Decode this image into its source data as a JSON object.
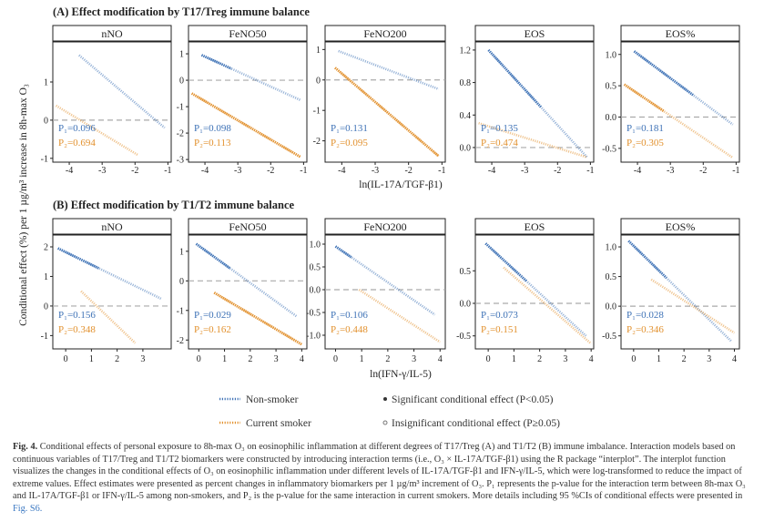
{
  "figure": {
    "ylabel": "Conditional  effect (%) per 1 µg/m³ increase in 8h-max O₃",
    "panel_a_title": "(A) Effect modification by T17/Treg immune balance",
    "panel_b_title": "(B) Effect modification by T1/T2 immune balance",
    "panel_a_xlabel": "ln(IL-17A/TGF-β1)",
    "panel_b_xlabel": "ln(IFN-γ/IL-5)",
    "legend": {
      "non_smoker": "Non-smoker",
      "current_smoker": "Current smoker",
      "significant": "Significant conditional  effect (P<0.05)",
      "insignificant": "Insignificant conditional  effect (P≥0.05)"
    },
    "colors": {
      "non_smoker": "#3e72b6",
      "current_smoker": "#e2912e",
      "refline": "#aaaaaa"
    }
  },
  "caption": {
    "label": "Fig. 4.",
    "text": "Conditional effects of personal exposure to 8h-max O₃ on eosinophilic inflammation at different degrees of T17/Treg (A) and T1/T2 (B) immune imbalance. Interaction models based on continuous variables of T17/Treg and T1/T2 biomarkers were constructed by introducing interaction terms (i.e., O₃ × IL-17A/TGF-β1) using the R package “interplot”. The interplot function visualizes the changes in the conditional effects of O₃ on eosinophilic inflammation under different levels of IL-17A/TGF-β1 and IFN-γ/IL-5, which were log-transformed to reduce the impact of extreme values. Effect estimates were presented as percent changes in inflammatory biomarkers per 1 µg/m³ increment of O₃. P₁ represents the p-value for the interaction term between 8h-max O₃ and IL-17A/TGF-β1 or IFN-γ/IL-5 among non-smokers, and P₂ is the p-value for the same interaction in current smokers. More details including 95 %CIs of conditional effects were presented in",
    "link": "Fig. S6."
  },
  "chart_data": [
    {
      "type": "line",
      "panel": "A",
      "title": "nNO",
      "xlim": [
        -4.5,
        -0.9
      ],
      "ylim": [
        -1.1,
        2.05
      ],
      "xticks": [
        -4,
        -3,
        -2,
        -1
      ],
      "yticks": [
        -1,
        0,
        1
      ],
      "ytick_labels": [
        "-1",
        "0",
        "1"
      ],
      "series": [
        {
          "name": "Non-smoker",
          "x": [
            -3.7,
            -1.1
          ],
          "y": [
            1.7,
            -0.2
          ],
          "p": "P₁=0.096",
          "significant_x": []
        },
        {
          "name": "Current smoker",
          "x": [
            -4.4,
            -1.9
          ],
          "y": [
            0.38,
            -0.92
          ],
          "p": "P₂=0.694",
          "significant_x": []
        }
      ]
    },
    {
      "type": "line",
      "panel": "A",
      "title": "FeNO50",
      "xlim": [
        -4.5,
        -0.9
      ],
      "ylim": [
        -3.1,
        1.45
      ],
      "xticks": [
        -4,
        -3,
        -2,
        -1
      ],
      "yticks": [
        -3,
        -2,
        -1,
        0,
        1
      ],
      "ytick_labels": [
        "-3",
        "-2",
        "-1",
        "0",
        "1"
      ],
      "series": [
        {
          "name": "Non-smoker",
          "x": [
            -4.1,
            -1.1
          ],
          "y": [
            0.95,
            -0.75
          ],
          "p": "P₁=0.098",
          "significant_x": [
            -4.1,
            -3.2
          ]
        },
        {
          "name": "Current smoker",
          "x": [
            -4.4,
            -1.1
          ],
          "y": [
            -0.5,
            -2.9
          ],
          "p": "P₂=0.113",
          "significant_x": [
            -4.4,
            -1.1
          ]
        }
      ]
    },
    {
      "type": "line",
      "panel": "A",
      "title": "FeNO200",
      "xlim": [
        -4.5,
        -0.9
      ],
      "ylim": [
        -2.7,
        1.25
      ],
      "xticks": [
        -4,
        -3,
        -2,
        -1
      ],
      "yticks": [
        -2,
        -1,
        0,
        1
      ],
      "ytick_labels": [
        "-2",
        "-1",
        "0",
        "1"
      ],
      "series": [
        {
          "name": "Non-smoker",
          "x": [
            -4.1,
            -1.1
          ],
          "y": [
            0.95,
            -0.3
          ],
          "p": "P₁=0.131",
          "significant_x": []
        },
        {
          "name": "Current smoker",
          "x": [
            -4.2,
            -1.1
          ],
          "y": [
            0.4,
            -2.5
          ],
          "p": "P₂=0.095",
          "significant_x": [
            -4.2,
            -1.1
          ]
        }
      ]
    },
    {
      "type": "line",
      "panel": "A",
      "title": "EOS",
      "xlim": [
        -4.5,
        -0.9
      ],
      "ylim": [
        -0.18,
        1.3
      ],
      "xticks": [
        -4,
        -3,
        -2,
        -1
      ],
      "yticks": [
        0.0,
        0.4,
        0.8,
        1.2
      ],
      "ytick_labels": [
        "0.0",
        "0.4",
        "0.8",
        "1.2"
      ],
      "series": [
        {
          "name": "Non-smoker",
          "x": [
            -4.1,
            -1.1
          ],
          "y": [
            1.2,
            -0.12
          ],
          "p": "P₁=0.135",
          "significant_x": [
            -4.1,
            -2.5
          ]
        },
        {
          "name": "Current smoker",
          "x": [
            -4.4,
            -1.1
          ],
          "y": [
            0.3,
            -0.12
          ],
          "p": "P₂=0.474",
          "significant_x": []
        }
      ]
    },
    {
      "type": "line",
      "panel": "A",
      "title": "EOS%",
      "xlim": [
        -4.5,
        -0.9
      ],
      "ylim": [
        -0.72,
        1.2
      ],
      "xticks": [
        -4,
        -3,
        -2,
        -1
      ],
      "yticks": [
        -0.5,
        0.0,
        0.5,
        1.0
      ],
      "ytick_labels": [
        "-0.5",
        "0.0",
        "0.5",
        "1.0"
      ],
      "series": [
        {
          "name": "Non-smoker",
          "x": [
            -4.1,
            -1.1
          ],
          "y": [
            1.05,
            -0.12
          ],
          "p": "P₁=0.181",
          "significant_x": [
            -4.1,
            -2.3
          ]
        },
        {
          "name": "Current smoker",
          "x": [
            -4.4,
            -1.1
          ],
          "y": [
            0.52,
            -0.65
          ],
          "p": "P₂=0.305",
          "significant_x": [
            -4.4,
            -3.2
          ]
        }
      ]
    },
    {
      "type": "line",
      "panel": "B",
      "title": "nNO",
      "xlim": [
        -0.5,
        4.1
      ],
      "ylim": [
        -1.45,
        2.4
      ],
      "xticks": [
        0,
        1,
        2,
        3
      ],
      "yticks": [
        -1,
        0,
        1,
        2
      ],
      "ytick_labels": [
        "-1",
        "0",
        "1",
        "2"
      ],
      "series": [
        {
          "name": "Non-smoker",
          "x": [
            -0.3,
            3.7
          ],
          "y": [
            1.95,
            0.25
          ],
          "p": "P₁=0.156",
          "significant_x": [
            -0.3,
            1.3
          ]
        },
        {
          "name": "Current smoker",
          "x": [
            0.6,
            2.7
          ],
          "y": [
            0.5,
            -1.25
          ],
          "p": "P₂=0.348",
          "significant_x": []
        }
      ]
    },
    {
      "type": "line",
      "panel": "B",
      "title": "FeNO50",
      "xlim": [
        -0.4,
        4.2
      ],
      "ylim": [
        -2.3,
        1.55
      ],
      "xticks": [
        0,
        1,
        2,
        3,
        4
      ],
      "yticks": [
        -2,
        -1,
        0,
        1
      ],
      "ytick_labels": [
        "-2",
        "-1",
        "0",
        "1"
      ],
      "series": [
        {
          "name": "Non-smoker",
          "x": [
            -0.1,
            3.8
          ],
          "y": [
            1.25,
            -1.2
          ],
          "p": "P₁=0.029",
          "significant_x": [
            -0.1,
            1.2
          ]
        },
        {
          "name": "Current smoker",
          "x": [
            0.6,
            4.0
          ],
          "y": [
            -0.4,
            -2.15
          ],
          "p": "P₂=0.162",
          "significant_x": [
            0.6,
            4.0
          ]
        }
      ]
    },
    {
      "type": "line",
      "panel": "B",
      "title": "FeNO200",
      "xlim": [
        -0.4,
        4.2
      ],
      "ylim": [
        -1.3,
        1.2
      ],
      "xticks": [
        0,
        1,
        2,
        3,
        4
      ],
      "yticks": [
        -1.0,
        -0.5,
        0.0,
        0.5,
        1.0
      ],
      "ytick_labels": [
        "-1.0",
        "-0.5",
        "0.0",
        "0.5",
        "1.0"
      ],
      "series": [
        {
          "name": "Non-smoker",
          "x": [
            0.0,
            3.8
          ],
          "y": [
            0.95,
            -0.55
          ],
          "p": "P₁=0.106",
          "significant_x": [
            0.0,
            0.6
          ]
        },
        {
          "name": "Current smoker",
          "x": [
            0.9,
            4.0
          ],
          "y": [
            0.0,
            -1.15
          ],
          "p": "P₂=0.448",
          "significant_x": []
        }
      ]
    },
    {
      "type": "line",
      "panel": "B",
      "title": "EOS",
      "xlim": [
        -0.5,
        4.1
      ],
      "ylim": [
        -0.7,
        1.05
      ],
      "xticks": [
        0,
        1,
        2,
        3,
        4
      ],
      "yticks": [
        -0.5,
        0.0,
        0.5
      ],
      "ytick_labels": [
        "-0.5",
        "0.0",
        "0.5"
      ],
      "series": [
        {
          "name": "Non-smoker",
          "x": [
            -0.1,
            3.8
          ],
          "y": [
            0.92,
            -0.5
          ],
          "p": "P₁=0.073",
          "significant_x": [
            -0.1,
            1.5
          ]
        },
        {
          "name": "Current smoker",
          "x": [
            0.6,
            4.0
          ],
          "y": [
            0.55,
            -0.62
          ],
          "p": "P₂=0.151",
          "significant_x": []
        }
      ]
    },
    {
      "type": "line",
      "panel": "B",
      "title": "EOS%",
      "xlim": [
        -0.5,
        4.2
      ],
      "ylim": [
        -0.72,
        1.2
      ],
      "xticks": [
        0,
        1,
        2,
        3,
        4
      ],
      "yticks": [
        -0.5,
        0.0,
        0.5,
        1.0
      ],
      "ytick_labels": [
        "-0.5",
        "0.0",
        "0.5",
        "1.0"
      ],
      "series": [
        {
          "name": "Non-smoker",
          "x": [
            -0.2,
            3.9
          ],
          "y": [
            1.1,
            -0.6
          ],
          "p": "P₁=0.028",
          "significant_x": [
            -0.2,
            1.3
          ]
        },
        {
          "name": "Current smoker",
          "x": [
            0.7,
            4.0
          ],
          "y": [
            0.45,
            -0.45
          ],
          "p": "P₂=0.346",
          "significant_x": []
        }
      ]
    }
  ]
}
